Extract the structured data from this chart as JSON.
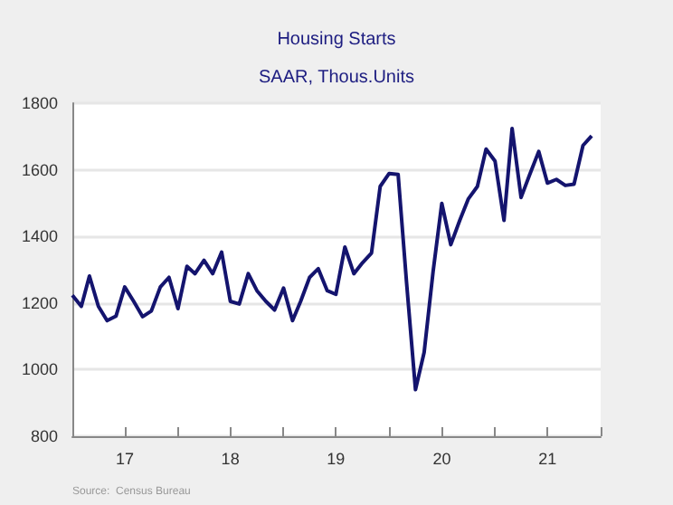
{
  "chart_data": {
    "type": "line",
    "title": "Housing Starts",
    "subtitle": "SAAR, Thous.Units",
    "annotations": [
      "Source:  Census Bureau"
    ],
    "x": [
      "2017-01",
      "2017-02",
      "2017-03",
      "2017-04",
      "2017-05",
      "2017-06",
      "2017-07",
      "2017-08",
      "2017-09",
      "2017-10",
      "2017-11",
      "2017-12",
      "2018-01",
      "2018-02",
      "2018-03",
      "2018-04",
      "2018-05",
      "2018-06",
      "2018-07",
      "2018-08",
      "2018-09",
      "2018-10",
      "2018-11",
      "2018-12",
      "2019-01",
      "2019-02",
      "2019-03",
      "2019-04",
      "2019-05",
      "2019-06",
      "2019-07",
      "2019-08",
      "2019-09",
      "2019-10",
      "2019-11",
      "2019-12",
      "2020-01",
      "2020-02",
      "2020-03",
      "2020-04",
      "2020-05",
      "2020-06",
      "2020-07",
      "2020-08",
      "2020-09",
      "2020-10",
      "2020-11",
      "2020-12",
      "2021-01",
      "2021-02",
      "2021-03",
      "2021-04",
      "2021-05",
      "2021-06",
      "2021-07",
      "2021-08",
      "2021-09",
      "2021-10",
      "2021-11",
      "2021-12"
    ],
    "series": [
      {
        "color": "#14146e",
        "values": [
          1223,
          1190,
          1281,
          1190,
          1147,
          1161,
          1248,
          1205,
          1159,
          1176,
          1248,
          1277,
          1183,
          1310,
          1288,
          1328,
          1288,
          1353,
          1205,
          1197,
          1288,
          1237,
          1205,
          1179,
          1245,
          1147,
          1205,
          1277,
          1303,
          1237,
          1226,
          1368,
          1288,
          1321,
          1350,
          1550,
          1589,
          1586,
          1263,
          940,
          1052,
          1295,
          1499,
          1375,
          1448,
          1513,
          1550,
          1662,
          1626,
          1448,
          1724,
          1517,
          1586,
          1655,
          1560,
          1571,
          1553,
          1557,
          1673,
          1702
        ]
      }
    ],
    "xlim": [
      "2017-01",
      "2022-01"
    ],
    "xticks": [
      {
        "value": "2017-01",
        "label": null
      },
      {
        "value": "2017-07",
        "label": "17"
      },
      {
        "value": "2018-01",
        "label": null
      },
      {
        "value": "2018-07",
        "label": "18"
      },
      {
        "value": "2019-01",
        "label": null
      },
      {
        "value": "2019-07",
        "label": "19"
      },
      {
        "value": "2020-01",
        "label": null
      },
      {
        "value": "2020-07",
        "label": "20"
      },
      {
        "value": "2021-01",
        "label": null
      },
      {
        "value": "2021-07",
        "label": "21"
      },
      {
        "value": "2022-01",
        "label": null
      }
    ],
    "ylim": [
      800,
      1800
    ],
    "yticks": [
      800,
      1000,
      1200,
      1400,
      1600,
      1800
    ],
    "grid": "y",
    "marker": "none",
    "line_style": "solid"
  }
}
